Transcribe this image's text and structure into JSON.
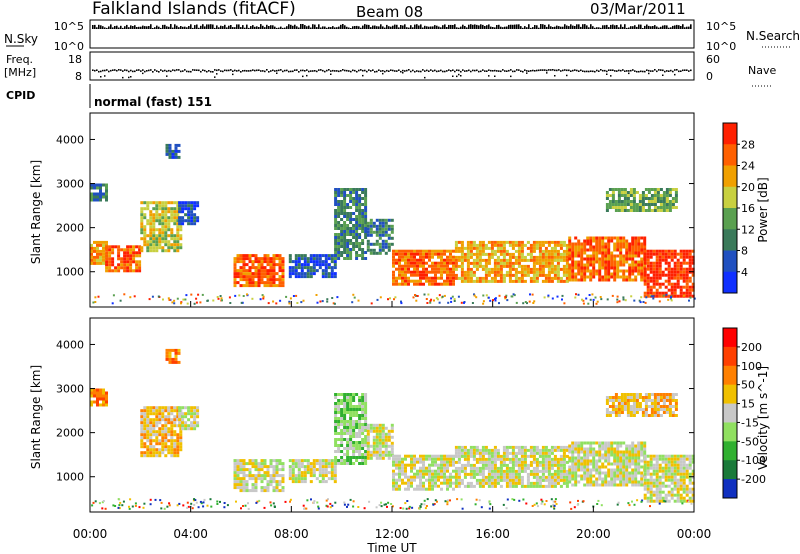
{
  "header": {
    "station": "Falkland Islands (fitACF)",
    "beam": "Beam 08",
    "date": "03/Mar/2011"
  },
  "top_panels": {
    "nsky_label": "N.Sky",
    "nsky_ticks": [
      "10^5",
      "10^0"
    ],
    "nsearch_label": "N.Search",
    "nsearch_ticks": [
      "10^5",
      "10^0"
    ],
    "freq_label_1": "Freq.",
    "freq_label_2": "[MHz]",
    "freq_ticks": [
      "18",
      "8"
    ],
    "nave_label": "Nave",
    "nave_ticks": [
      "60",
      "0"
    ],
    "cpid_label": "CPID",
    "cpid_text": "normal (fast) 151"
  },
  "chart_data": [
    {
      "type": "heatmap",
      "name": "power",
      "ylabel": "Slant Range [km]",
      "yticks": [
        "1000",
        "2000",
        "3000",
        "4000"
      ],
      "ylim": [
        200,
        4600
      ],
      "xlim_hours": [
        0,
        24
      ],
      "colorbar": {
        "label": "Power [dB]",
        "ticks": [
          "4",
          "8",
          "12",
          "16",
          "20",
          "24",
          "28"
        ],
        "colors": [
          "#1030ff",
          "#2050c0",
          "#3a7a5a",
          "#5aa050",
          "#c8d040",
          "#f0a000",
          "#ff6000",
          "#ff2000"
        ]
      },
      "echo_regions": [
        {
          "t0": 0.0,
          "t1": 0.6,
          "r0": 1200,
          "r1": 1700,
          "level": 5
        },
        {
          "t0": 0.0,
          "t1": 0.6,
          "r0": 2600,
          "r1": 3000,
          "level": 2
        },
        {
          "t0": 0.6,
          "t1": 2.0,
          "r0": 1050,
          "r1": 1600,
          "level": 6
        },
        {
          "t0": 2.0,
          "t1": 3.6,
          "r0": 1500,
          "r1": 2600,
          "level": 4
        },
        {
          "t0": 3.5,
          "t1": 4.3,
          "r0": 2100,
          "r1": 2600,
          "level": 1
        },
        {
          "t0": 3.0,
          "t1": 3.5,
          "r0": 3600,
          "r1": 3900,
          "level": 1
        },
        {
          "t0": 5.7,
          "t1": 7.7,
          "r0": 700,
          "r1": 1400,
          "level": 6
        },
        {
          "t0": 7.9,
          "t1": 9.7,
          "r0": 900,
          "r1": 1400,
          "level": 1
        },
        {
          "t0": 9.7,
          "t1": 11.0,
          "r0": 1300,
          "r1": 2900,
          "level": 2
        },
        {
          "t0": 11.0,
          "t1": 12.0,
          "r0": 1400,
          "r1": 2200,
          "level": 2
        },
        {
          "t0": 12.0,
          "t1": 14.5,
          "r0": 700,
          "r1": 1500,
          "level": 6
        },
        {
          "t0": 14.5,
          "t1": 19.0,
          "r0": 800,
          "r1": 1700,
          "level": 5
        },
        {
          "t0": 19.0,
          "t1": 22.0,
          "r0": 800,
          "r1": 1800,
          "level": 6
        },
        {
          "t0": 22.0,
          "t1": 24.0,
          "r0": 450,
          "r1": 1500,
          "level": 7
        },
        {
          "t0": 20.5,
          "t1": 23.3,
          "r0": 2400,
          "r1": 2900,
          "level": 3
        }
      ]
    },
    {
      "type": "heatmap",
      "name": "velocity",
      "ylabel": "Slant Range [km]",
      "yticks": [
        "1000",
        "2000",
        "3000",
        "4000"
      ],
      "ylim": [
        200,
        4600
      ],
      "xlim_hours": [
        0,
        24
      ],
      "xticks": [
        "00:00",
        "04:00",
        "08:00",
        "12:00",
        "16:00",
        "20:00",
        "00:00"
      ],
      "xlabel": "Time UT",
      "colorbar": {
        "label": "Velocity [m s^-1]",
        "ticks": [
          "200",
          "100",
          "50",
          "15",
          "-15",
          "-50",
          "-100",
          "-200"
        ],
        "colors": [
          "#1030c0",
          "#1a7a3a",
          "#30b030",
          "#90e060",
          "#c8c8c8",
          "#f0c000",
          "#ff8000",
          "#ff4000",
          "#ff0000"
        ]
      },
      "echo_regions": [
        {
          "t0": 0.0,
          "t1": 0.6,
          "r0": 2600,
          "r1": 3000,
          "level": 6
        },
        {
          "t0": 2.0,
          "t1": 3.6,
          "r0": 1500,
          "r1": 2600,
          "level": 5
        },
        {
          "t0": 3.5,
          "t1": 4.3,
          "r0": 2100,
          "r1": 2600,
          "level": 4
        },
        {
          "t0": 3.0,
          "t1": 3.5,
          "r0": 3600,
          "r1": 3900,
          "level": 6
        },
        {
          "t0": 5.7,
          "t1": 7.7,
          "r0": 700,
          "r1": 1400,
          "level": 4
        },
        {
          "t0": 7.9,
          "t1": 9.7,
          "r0": 900,
          "r1": 1400,
          "level": 4
        },
        {
          "t0": 9.7,
          "t1": 11.0,
          "r0": 1300,
          "r1": 2900,
          "level": 3
        },
        {
          "t0": 11.0,
          "t1": 12.0,
          "r0": 1400,
          "r1": 2200,
          "level": 4
        },
        {
          "t0": 12.0,
          "t1": 14.5,
          "r0": 700,
          "r1": 1500,
          "level": 4
        },
        {
          "t0": 14.5,
          "t1": 19.0,
          "r0": 800,
          "r1": 1700,
          "level": 4
        },
        {
          "t0": 19.0,
          "t1": 22.0,
          "r0": 800,
          "r1": 1800,
          "level": 4
        },
        {
          "t0": 22.0,
          "t1": 24.0,
          "r0": 450,
          "r1": 1500,
          "level": 4
        },
        {
          "t0": 20.5,
          "t1": 23.3,
          "r0": 2400,
          "r1": 2900,
          "level": 5
        }
      ]
    }
  ]
}
